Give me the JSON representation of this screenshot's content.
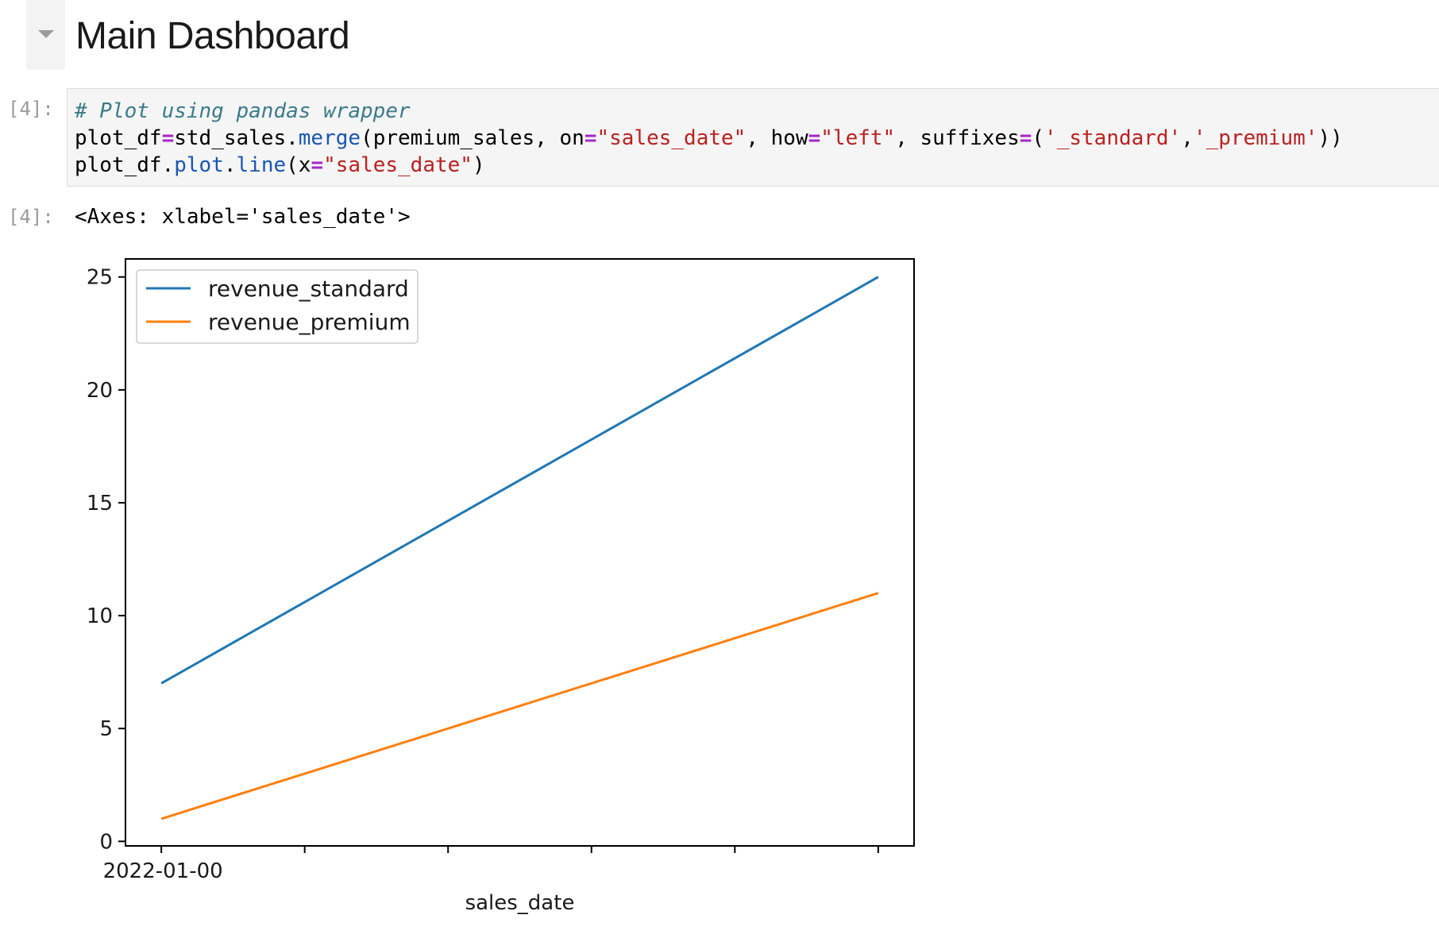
{
  "heading": {
    "title": "Main Dashboard"
  },
  "cells": {
    "input_prompt": "[4]:",
    "output_prompt": "[4]:",
    "code_lines": [
      [
        {
          "t": "# Plot using pandas wrapper",
          "k": "comment"
        }
      ],
      [
        {
          "t": "plot_df",
          "k": "plain"
        },
        {
          "t": "=",
          "k": "op"
        },
        {
          "t": "std_sales",
          "k": "plain"
        },
        {
          "t": ".",
          "k": "plain"
        },
        {
          "t": "merge",
          "k": "attr"
        },
        {
          "t": "(premium_sales, on",
          "k": "plain"
        },
        {
          "t": "=",
          "k": "op"
        },
        {
          "t": "\"sales_date\"",
          "k": "str"
        },
        {
          "t": ", how",
          "k": "plain"
        },
        {
          "t": "=",
          "k": "op"
        },
        {
          "t": "\"left\"",
          "k": "str"
        },
        {
          "t": ", suffixes",
          "k": "plain"
        },
        {
          "t": "=",
          "k": "op"
        },
        {
          "t": "(",
          "k": "plain"
        },
        {
          "t": "'_standard'",
          "k": "str"
        },
        {
          "t": ",",
          "k": "plain"
        },
        {
          "t": "'_premium'",
          "k": "str"
        },
        {
          "t": "))",
          "k": "plain"
        }
      ],
      [
        {
          "t": "plot_df",
          "k": "plain"
        },
        {
          "t": ".",
          "k": "plain"
        },
        {
          "t": "plot",
          "k": "attr"
        },
        {
          "t": ".",
          "k": "plain"
        },
        {
          "t": "line",
          "k": "attr"
        },
        {
          "t": "(x",
          "k": "plain"
        },
        {
          "t": "=",
          "k": "op"
        },
        {
          "t": "\"sales_date\"",
          "k": "str"
        },
        {
          "t": ")",
          "k": "plain"
        }
      ]
    ],
    "output_text": "<Axes: xlabel='sales_date'>"
  },
  "chart_data": {
    "type": "line",
    "x_tick_labels": [
      "2022-01-00",
      "",
      "",
      "",
      "",
      ""
    ],
    "xlabel": "sales_date",
    "ylabel": "",
    "title": "",
    "ylim": [
      -0.2,
      25.8
    ],
    "y_ticks": [
      0,
      5,
      10,
      15,
      20,
      25
    ],
    "grid": false,
    "legend_position": "upper-left",
    "series": [
      {
        "name": "revenue_standard",
        "color": "#1f77b4",
        "x": [
          0,
          5
        ],
        "values": [
          7,
          25
        ]
      },
      {
        "name": "revenue_premium",
        "color": "#ff7f0e",
        "x": [
          0,
          5
        ],
        "values": [
          1,
          11
        ]
      }
    ],
    "x_ticks": [
      0,
      1,
      2,
      3,
      4,
      5
    ],
    "xlim": [
      -0.25,
      5.25
    ]
  }
}
